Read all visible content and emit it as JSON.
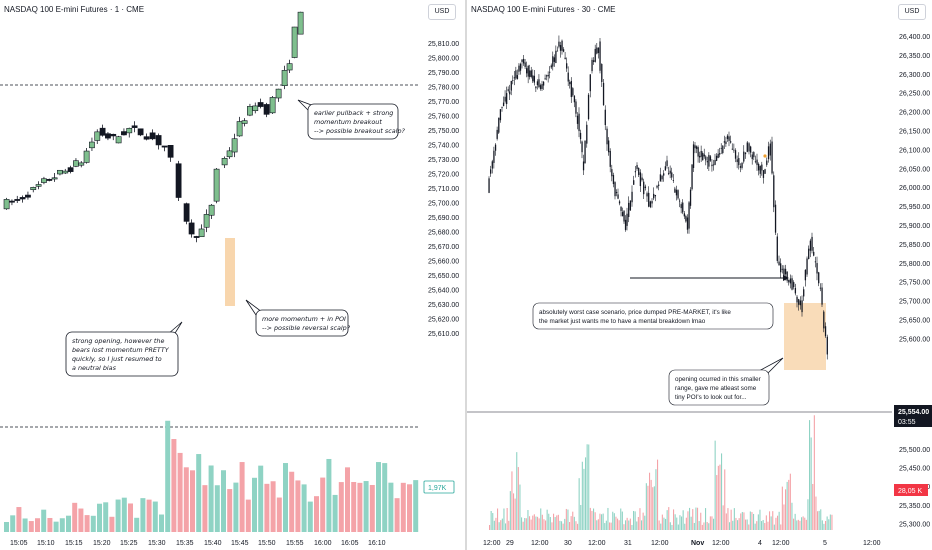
{
  "left": {
    "title": "NASDAQ 100 E-mini Futures · 1 · CME",
    "currency": "USD",
    "y_ticks": [
      "25,810.00",
      "25,800.00",
      "25,790.00",
      "25,780.00",
      "25,770.00",
      "25,760.00",
      "25,750.00",
      "25,740.00",
      "25,730.00",
      "25,720.00",
      "25,710.00",
      "25,700.00",
      "25,690.00",
      "25,680.00",
      "25,670.00",
      "25,660.00",
      "25,650.00",
      "25,640.00",
      "25,630.00",
      "25,620.00",
      "25,610.00"
    ],
    "x_ticks": [
      "15:05",
      "15:10",
      "15:15",
      "15:20",
      "15:25",
      "15:30",
      "15:35",
      "15:40",
      "15:45",
      "15:50",
      "15:55",
      "16:00",
      "16:05",
      "16:10"
    ],
    "volume_badge": "1,97K",
    "annotations": {
      "a1": [
        "earlier pullback + strong",
        "momentum breakout",
        "--> possible breakout scalp?"
      ],
      "a2": [
        "more momentum + in POI",
        "--> possible reversal scalp?"
      ],
      "a3": [
        "strong opening, however the",
        "bears lost momentum PRETTY",
        "quickly, so I just resumed to",
        "a neutral bias"
      ]
    }
  },
  "right": {
    "title": "NASDAQ 100 E-mini Futures · 30 · CME",
    "currency": "USD",
    "y_ticks": [
      "26,400.00",
      "26,350.00",
      "26,300.00",
      "26,250.00",
      "26,200.00",
      "26,150.00",
      "26,100.00",
      "26,050.00",
      "26,000.00",
      "25,950.00",
      "25,900.00",
      "25,850.00",
      "25,800.00",
      "25,750.00",
      "25,700.00",
      "25,650.00",
      "25,600.00",
      "25,500.00",
      "25,450.00",
      "25,400.00",
      "25,350.00",
      "25,300.00"
    ],
    "x_ticks": [
      "12:00",
      "29",
      "12:00",
      "30",
      "12:00",
      "31",
      "12:00",
      "Nov",
      "12:00",
      "4",
      "12:00",
      "5",
      "12:00"
    ],
    "price_badge": [
      "25,554.00",
      "03:55"
    ],
    "volume_badge": "28,05 K",
    "annotations": {
      "b1": [
        "absolutely worst case scenario, price dumped PRE-MARKET, it's like",
        "the market just wants me to have a mental breakdown lmao"
      ],
      "b2": [
        "opening ocurred in this smaller",
        "range, gave me atleast some",
        "tiny POI's to look out for..."
      ]
    }
  },
  "colors": {
    "up": "#7fbf8e",
    "down": "#131722",
    "vol_up": "#8fd3c4",
    "vol_down": "#f4a3a8",
    "poi": "#f5c58a",
    "badge_dark": "#131722",
    "badge_red": "#f23645",
    "badge_teal": "#26a69a"
  },
  "chart_data": [
    {
      "type": "candlestick",
      "title": "NASDAQ 100 E-mini Futures · 1 · CME",
      "x": [
        "15:05",
        "15:10",
        "15:15",
        "15:20",
        "15:25",
        "15:30",
        "15:35",
        "15:40",
        "15:45",
        "15:50",
        "15:55",
        "16:00",
        "16:05",
        "16:10"
      ],
      "ylim": [
        25605,
        25820
      ],
      "close_approx": [
        25690,
        25693,
        25705,
        25715,
        25730,
        25730,
        25745,
        25740,
        25692,
        25672,
        25690,
        25720,
        25750,
        25765,
        25810
      ]
    },
    {
      "type": "candlestick",
      "title": "NASDAQ 100 E-mini Futures · 30 · CME",
      "x": [
        "12:00",
        "29",
        "12:00",
        "30",
        "12:00",
        "31",
        "12:00",
        "Nov",
        "12:00",
        "4",
        "12:00",
        "5",
        "12:00"
      ],
      "ylim": [
        25280,
        26430
      ],
      "close_approx": [
        26150,
        26300,
        26380,
        26320,
        26390,
        26150,
        25900,
        26000,
        26120,
        26100,
        26130,
        25950,
        25750,
        25554
      ],
      "last_price": 25554.0
    }
  ]
}
